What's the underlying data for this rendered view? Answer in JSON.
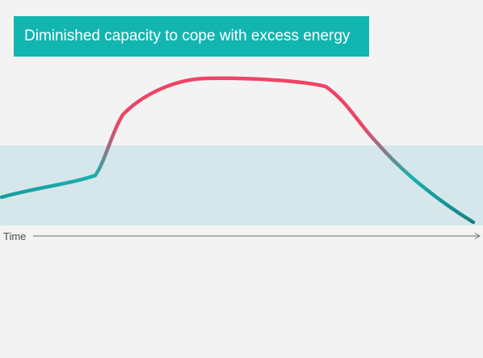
{
  "title": "Diminished capacity to cope with excess energy",
  "axis": {
    "x_label": "Time"
  },
  "colors": {
    "background": "#f3f3f3",
    "banner": "#12b5b0",
    "window_band": "#d5e7ea",
    "curve_high": "#ee4466",
    "curve_low": "#1ab0ae",
    "curve_end": "#167f84",
    "axis": "#6f6f6f",
    "axis_text": "#4d4d4d"
  }
}
